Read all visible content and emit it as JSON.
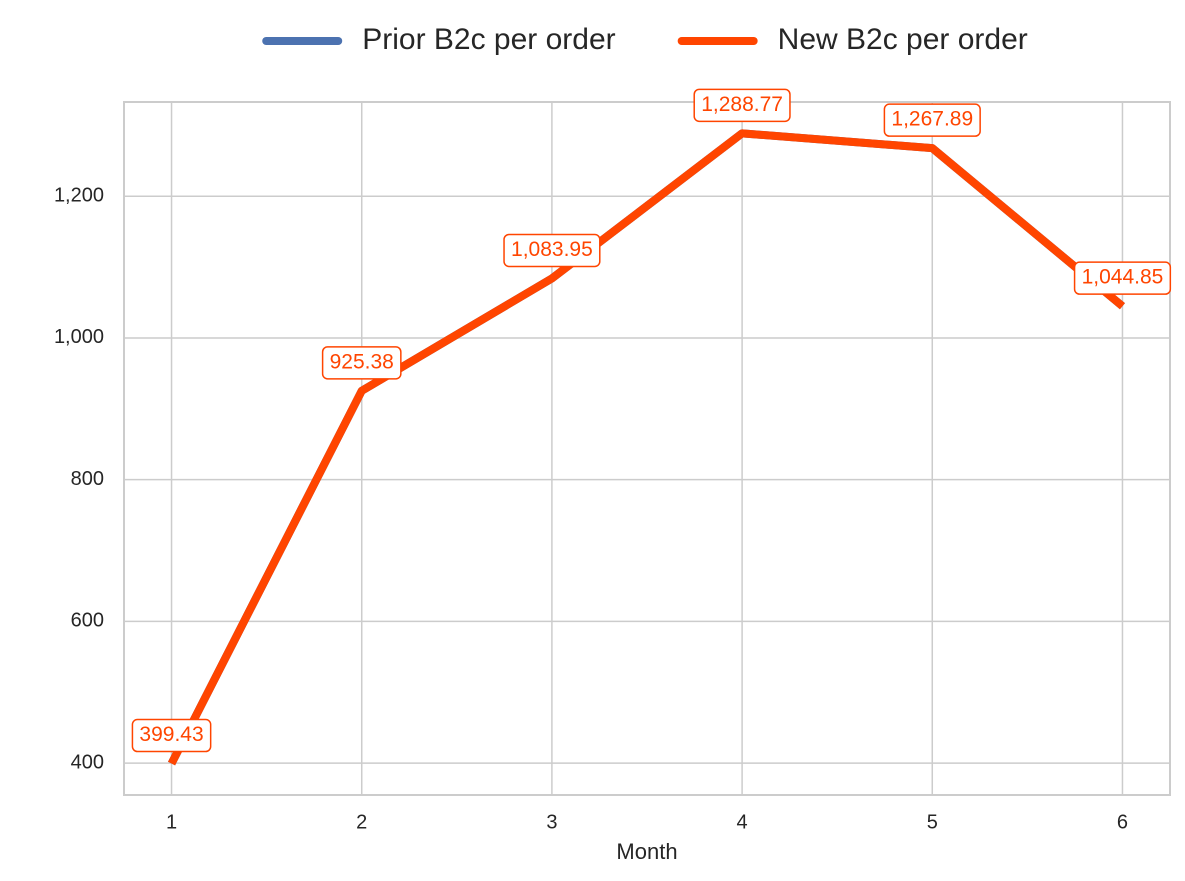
{
  "chart_data": {
    "type": "line",
    "x_label": "Month",
    "x": [
      1,
      2,
      3,
      4,
      5,
      6
    ],
    "xlim": [
      0.75,
      6.25
    ],
    "xticks": [
      1,
      2,
      3,
      4,
      5,
      6
    ],
    "ylim": [
      355,
      1333
    ],
    "yticks": [
      400,
      600,
      800,
      {
        "value": 1000,
        "label": "1,000"
      },
      {
        "value": 1200,
        "label": "1,200"
      }
    ],
    "grid": true,
    "legend": "top",
    "series": [
      {
        "name": "Prior B2c per order",
        "color": "#4c72b0",
        "values": [
          399.43,
          925.38,
          1083.95,
          1288.77,
          1267.89,
          1044.85
        ]
      },
      {
        "name": "New B2c per order",
        "color": "#ff4500",
        "values": [
          399.43,
          925.38,
          1083.95,
          1288.77,
          1267.89,
          1044.85
        ],
        "value_labels": [
          "399.43",
          "925.38",
          "1,083.95",
          "1,288.77",
          "1,267.89",
          "1,044.85"
        ]
      }
    ]
  }
}
